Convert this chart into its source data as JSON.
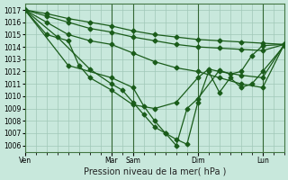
{
  "background_color": "#c8e8dc",
  "grid_color": "#a0c8b8",
  "line_color": "#1a5c1a",
  "marker": "D",
  "markersize": 2.5,
  "linewidth": 0.9,
  "xlabel": "Pression niveau de la mer( hPa )",
  "xlabel_fontsize": 7,
  "ylim": [
    1005.5,
    1017.5
  ],
  "yticks": [
    1006,
    1007,
    1008,
    1009,
    1010,
    1011,
    1012,
    1013,
    1014,
    1015,
    1016,
    1017
  ],
  "ytick_fontsize": 5.5,
  "xtick_labels": [
    "Ven",
    "Mar",
    "Sam",
    "Dim",
    "Lun"
  ],
  "xtick_pos": [
    0,
    8,
    10,
    16,
    22
  ],
  "xlim": [
    0,
    24
  ],
  "xgrid_minor": 1,
  "series": [
    {
      "x": [
        0,
        2,
        4,
        6,
        8,
        10,
        12,
        14,
        16,
        18,
        20,
        22,
        24
      ],
      "y": [
        1017,
        1016.7,
        1016.3,
        1016.0,
        1015.7,
        1015.3,
        1015.0,
        1014.8,
        1014.6,
        1014.5,
        1014.4,
        1014.3,
        1014.2
      ]
    },
    {
      "x": [
        0,
        2,
        4,
        6,
        8,
        10,
        12,
        14,
        16,
        18,
        20,
        22,
        24
      ],
      "y": [
        1017,
        1016.5,
        1016.0,
        1015.5,
        1015.2,
        1014.8,
        1014.5,
        1014.2,
        1014.0,
        1013.9,
        1013.8,
        1013.7,
        1014.2
      ]
    },
    {
      "x": [
        0,
        2,
        4,
        6,
        8,
        10,
        12,
        14,
        16,
        18,
        20,
        22,
        24
      ],
      "y": [
        1017,
        1016.0,
        1015.0,
        1014.5,
        1014.2,
        1013.5,
        1012.8,
        1012.3,
        1012.0,
        1011.5,
        1011.0,
        1010.7,
        1014.2
      ]
    },
    {
      "x": [
        0,
        2,
        4,
        5,
        6,
        8,
        10,
        12,
        14,
        16,
        17,
        18,
        20,
        22,
        24
      ],
      "y": [
        1017,
        1015.0,
        1014.5,
        1012.5,
        1011.5,
        1010.5,
        1009.3,
        1009.0,
        1009.5,
        1011.5,
        1012.2,
        1012.0,
        1011.7,
        1011.5,
        1014.2
      ]
    },
    {
      "x": [
        0,
        3,
        6,
        8,
        9,
        10,
        11,
        12,
        13,
        14,
        15,
        16,
        17,
        18,
        19,
        20,
        21,
        22,
        24
      ],
      "y": [
        1017,
        1014.8,
        1012.2,
        1011.0,
        1010.5,
        1009.5,
        1008.5,
        1007.5,
        1007.0,
        1006.5,
        1006.1,
        1009.5,
        1012.0,
        1010.3,
        1011.5,
        1010.7,
        1011.0,
        1012.0,
        1014.1
      ]
    },
    {
      "x": [
        0,
        4,
        8,
        10,
        11,
        12,
        13,
        14,
        15,
        16,
        18,
        19,
        20,
        21,
        22,
        24
      ],
      "y": [
        1017,
        1012.5,
        1011.5,
        1010.7,
        1009.2,
        1008.0,
        1007.0,
        1006.0,
        1009.0,
        1009.8,
        1012.1,
        1011.8,
        1012.0,
        1013.3,
        1014.1,
        1014.2
      ]
    }
  ]
}
